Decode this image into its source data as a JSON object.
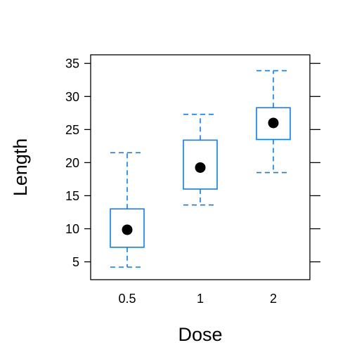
{
  "chart_data": {
    "type": "box",
    "xlabel": "Dose",
    "ylabel": "Length",
    "ylim": [
      2.3,
      36.3
    ],
    "yticks": [
      5,
      10,
      15,
      20,
      25,
      30,
      35
    ],
    "categories": [
      "0.5",
      "1",
      "2"
    ],
    "boxes": [
      {
        "category": "0.5",
        "whisker_low": 4.2,
        "q1": 7.2,
        "median": 9.85,
        "q3": 13.0,
        "whisker_high": 21.5
      },
      {
        "category": "1",
        "whisker_low": 13.6,
        "q1": 16.0,
        "median": 19.25,
        "q3": 23.4,
        "whisker_high": 27.3
      },
      {
        "category": "2",
        "whisker_low": 18.5,
        "q1": 23.5,
        "median": 26.0,
        "q3": 28.3,
        "whisker_high": 33.9
      }
    ],
    "grid": false,
    "colors": {
      "box": "#0080ff",
      "median_dot": "#000000",
      "frame": "#000000"
    }
  }
}
